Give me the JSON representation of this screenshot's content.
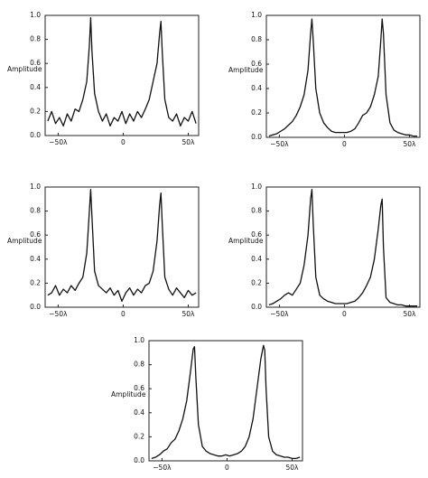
{
  "chart_data": [
    {
      "type": "line",
      "ylabel": "Amplitude",
      "xlim": [
        -60,
        58
      ],
      "ylim": [
        0,
        1
      ],
      "xticks": [
        {
          "value": -50,
          "label": "−50λ"
        },
        0,
        {
          "value": 50,
          "label": "50λ"
        }
      ],
      "yticks": [
        {
          "value": 0,
          "label": "0.0"
        },
        0.2,
        0.4,
        0.6,
        0.8,
        {
          "value": 1,
          "label": "1.0"
        }
      ],
      "color": "#111111",
      "x": [
        -58,
        -55,
        -52,
        -49,
        -46,
        -43,
        -40,
        -37,
        -34,
        -31,
        -28,
        -26,
        -25,
        -24,
        -22,
        -19,
        -16,
        -13,
        -10,
        -7,
        -4,
        -1,
        2,
        5,
        8,
        11,
        14,
        17,
        20,
        23,
        26,
        28,
        29,
        30,
        32,
        35,
        38,
        41,
        44,
        47,
        50,
        53,
        56
      ],
      "y": [
        0.12,
        0.2,
        0.1,
        0.15,
        0.08,
        0.18,
        0.12,
        0.22,
        0.2,
        0.3,
        0.45,
        0.75,
        0.98,
        0.7,
        0.35,
        0.2,
        0.12,
        0.18,
        0.08,
        0.15,
        0.12,
        0.2,
        0.1,
        0.18,
        0.12,
        0.2,
        0.15,
        0.22,
        0.3,
        0.45,
        0.6,
        0.85,
        0.95,
        0.7,
        0.3,
        0.15,
        0.12,
        0.18,
        0.08,
        0.15,
        0.12,
        0.2,
        0.1
      ]
    },
    {
      "type": "line",
      "ylabel": "Amplitude",
      "xlim": [
        -60,
        58
      ],
      "ylim": [
        0,
        1
      ],
      "xticks": [
        {
          "value": -50,
          "label": "−50λ"
        },
        0,
        {
          "value": 50,
          "label": "50λ"
        }
      ],
      "yticks": [
        {
          "value": 0,
          "label": "0.0"
        },
        0.2,
        0.4,
        0.6,
        0.8,
        {
          "value": 1,
          "label": "1.0"
        }
      ],
      "color": "#111111",
      "x": [
        -58,
        -55,
        -52,
        -49,
        -46,
        -43,
        -40,
        -37,
        -34,
        -31,
        -28,
        -26,
        -25,
        -24,
        -22,
        -19,
        -16,
        -13,
        -10,
        -7,
        -4,
        -1,
        2,
        5,
        8,
        11,
        14,
        17,
        20,
        23,
        26,
        28,
        29,
        30,
        32,
        35,
        38,
        41,
        44,
        47,
        50,
        53,
        56
      ],
      "y": [
        0.01,
        0.02,
        0.03,
        0.05,
        0.07,
        0.1,
        0.13,
        0.18,
        0.25,
        0.35,
        0.55,
        0.85,
        0.97,
        0.8,
        0.4,
        0.2,
        0.12,
        0.08,
        0.05,
        0.04,
        0.04,
        0.04,
        0.04,
        0.05,
        0.07,
        0.12,
        0.18,
        0.2,
        0.25,
        0.35,
        0.5,
        0.8,
        0.97,
        0.85,
        0.35,
        0.12,
        0.06,
        0.04,
        0.03,
        0.02,
        0.02,
        0.01,
        0.01
      ]
    },
    {
      "type": "line",
      "ylabel": "Amplitude",
      "xlim": [
        -60,
        58
      ],
      "ylim": [
        0,
        1
      ],
      "xticks": [
        {
          "value": -50,
          "label": "−50λ"
        },
        0,
        {
          "value": 50,
          "label": "50λ"
        }
      ],
      "yticks": [
        {
          "value": 0,
          "label": "0.0"
        },
        0.2,
        0.4,
        0.6,
        0.8,
        {
          "value": 1,
          "label": "1.0"
        }
      ],
      "color": "#111111",
      "x": [
        -58,
        -55,
        -52,
        -49,
        -46,
        -43,
        -40,
        -37,
        -34,
        -31,
        -28,
        -26,
        -25,
        -24,
        -22,
        -19,
        -16,
        -13,
        -10,
        -7,
        -4,
        -1,
        2,
        5,
        8,
        11,
        14,
        17,
        20,
        23,
        26,
        28,
        29,
        30,
        32,
        35,
        38,
        41,
        44,
        47,
        50,
        53,
        56
      ],
      "y": [
        0.1,
        0.12,
        0.18,
        0.1,
        0.15,
        0.12,
        0.18,
        0.14,
        0.2,
        0.25,
        0.45,
        0.8,
        0.98,
        0.75,
        0.3,
        0.18,
        0.15,
        0.12,
        0.16,
        0.1,
        0.14,
        0.05,
        0.12,
        0.16,
        0.1,
        0.15,
        0.12,
        0.18,
        0.2,
        0.3,
        0.55,
        0.85,
        0.95,
        0.7,
        0.25,
        0.15,
        0.1,
        0.16,
        0.12,
        0.08,
        0.14,
        0.1,
        0.12
      ]
    },
    {
      "type": "line",
      "ylabel": "Amplitude",
      "xlim": [
        -60,
        58
      ],
      "ylim": [
        0,
        1
      ],
      "xticks": [
        {
          "value": -50,
          "label": "−50λ"
        },
        0,
        {
          "value": 50,
          "label": "50λ"
        }
      ],
      "yticks": [
        {
          "value": 0,
          "label": "0.0"
        },
        0.2,
        0.4,
        0.6,
        0.8,
        {
          "value": 1,
          "label": "1.0"
        }
      ],
      "color": "#111111",
      "x": [
        -58,
        -55,
        -52,
        -49,
        -46,
        -43,
        -40,
        -37,
        -34,
        -31,
        -28,
        -26,
        -25,
        -24,
        -22,
        -19,
        -16,
        -13,
        -10,
        -7,
        -4,
        -1,
        2,
        5,
        8,
        11,
        14,
        17,
        20,
        23,
        26,
        28,
        29,
        30,
        32,
        35,
        38,
        41,
        44,
        47,
        50,
        53,
        56
      ],
      "y": [
        0.02,
        0.03,
        0.05,
        0.07,
        0.1,
        0.12,
        0.1,
        0.15,
        0.2,
        0.35,
        0.6,
        0.9,
        0.98,
        0.7,
        0.25,
        0.1,
        0.07,
        0.05,
        0.04,
        0.03,
        0.03,
        0.03,
        0.03,
        0.04,
        0.05,
        0.08,
        0.12,
        0.18,
        0.25,
        0.4,
        0.65,
        0.85,
        0.9,
        0.5,
        0.08,
        0.04,
        0.03,
        0.02,
        0.02,
        0.01,
        0.01,
        0.01,
        0.01
      ]
    },
    {
      "type": "line",
      "ylabel": "Amplitude",
      "xlim": [
        -60,
        58
      ],
      "ylim": [
        0,
        1
      ],
      "xticks": [
        {
          "value": -50,
          "label": "−50λ"
        },
        0,
        {
          "value": 50,
          "label": "50λ"
        }
      ],
      "yticks": [
        {
          "value": 0,
          "label": "0.0"
        },
        0.2,
        0.4,
        0.6,
        0.8,
        {
          "value": 1,
          "label": "1.0"
        }
      ],
      "color": "#111111",
      "x": [
        -58,
        -55,
        -52,
        -49,
        -46,
        -43,
        -40,
        -37,
        -34,
        -31,
        -28,
        -26,
        -25,
        -24,
        -22,
        -19,
        -16,
        -13,
        -10,
        -7,
        -4,
        -1,
        2,
        5,
        8,
        11,
        14,
        17,
        20,
        23,
        26,
        28,
        29,
        30,
        32,
        35,
        38,
        41,
        44,
        47,
        50,
        53,
        56
      ],
      "y": [
        0.02,
        0.03,
        0.05,
        0.08,
        0.1,
        0.15,
        0.18,
        0.25,
        0.35,
        0.5,
        0.75,
        0.93,
        0.95,
        0.7,
        0.3,
        0.12,
        0.08,
        0.06,
        0.05,
        0.04,
        0.04,
        0.05,
        0.04,
        0.05,
        0.06,
        0.08,
        0.12,
        0.2,
        0.35,
        0.6,
        0.85,
        0.96,
        0.92,
        0.6,
        0.2,
        0.08,
        0.05,
        0.04,
        0.03,
        0.03,
        0.02,
        0.02,
        0.03
      ]
    }
  ]
}
